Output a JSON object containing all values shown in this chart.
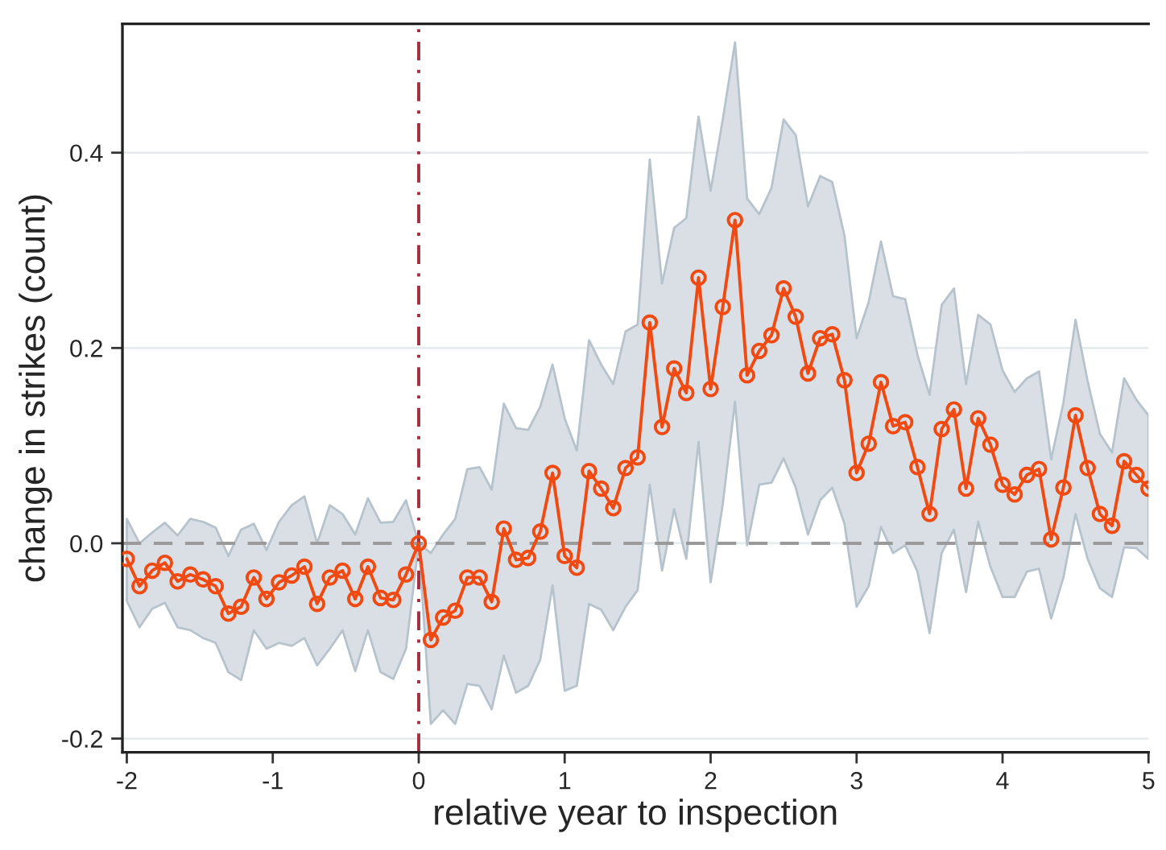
{
  "chart_data": {
    "type": "line",
    "xlabel": "relative year to inspection",
    "ylabel": "change in strikes (count)",
    "x": [
      -2.0,
      -1.913,
      -1.826,
      -1.739,
      -1.652,
      -1.565,
      -1.478,
      -1.391,
      -1.304,
      -1.217,
      -1.13,
      -1.043,
      -0.957,
      -0.87,
      -0.783,
      -0.696,
      -0.609,
      -0.522,
      -0.435,
      -0.348,
      -0.261,
      -0.174,
      -0.087,
      0.0,
      0.083,
      0.167,
      0.25,
      0.333,
      0.417,
      0.5,
      0.583,
      0.667,
      0.75,
      0.833,
      0.917,
      1.0,
      1.083,
      1.167,
      1.25,
      1.333,
      1.417,
      1.5,
      1.583,
      1.667,
      1.75,
      1.833,
      1.917,
      2.0,
      2.083,
      2.167,
      2.25,
      2.333,
      2.417,
      2.5,
      2.583,
      2.667,
      2.75,
      2.833,
      2.917,
      3.0,
      3.083,
      3.167,
      3.25,
      3.333,
      3.417,
      3.5,
      3.583,
      3.667,
      3.75,
      3.833,
      3.917,
      4.0,
      4.083,
      4.167,
      4.25,
      4.333,
      4.417,
      4.5,
      4.583,
      4.667,
      4.75,
      4.833,
      4.917,
      5.0
    ],
    "series": [
      {
        "color": "#f04a12",
        "marker": "circle",
        "line_style": "solid",
        "values": [
          -0.016,
          -0.044,
          -0.028,
          -0.02,
          -0.039,
          -0.032,
          -0.037,
          -0.044,
          -0.072,
          -0.065,
          -0.035,
          -0.057,
          -0.04,
          -0.033,
          -0.024,
          -0.062,
          -0.035,
          -0.028,
          -0.057,
          -0.024,
          -0.056,
          -0.058,
          -0.032,
          0.0,
          -0.099,
          -0.076,
          -0.069,
          -0.035,
          -0.035,
          -0.06,
          0.015,
          -0.017,
          -0.015,
          0.012,
          0.072,
          -0.013,
          -0.025,
          0.074,
          0.056,
          0.036,
          0.077,
          0.088,
          0.226,
          0.119,
          0.179,
          0.154,
          0.272,
          0.158,
          0.242,
          0.331,
          0.172,
          0.197,
          0.213,
          0.261,
          0.232,
          0.174,
          0.21,
          0.214,
          0.167,
          0.072,
          0.102,
          0.165,
          0.12,
          0.124,
          0.078,
          0.03,
          0.117,
          0.137,
          0.056,
          0.128,
          0.101,
          0.06,
          0.05,
          0.07,
          0.076,
          0.004,
          0.057,
          0.131,
          0.077,
          0.03,
          0.018,
          0.084,
          0.07,
          0.056
        ],
        "lower": [
          -0.059,
          -0.086,
          -0.067,
          -0.061,
          -0.086,
          -0.089,
          -0.097,
          -0.102,
          -0.132,
          -0.14,
          -0.089,
          -0.108,
          -0.102,
          -0.105,
          -0.097,
          -0.125,
          -0.108,
          -0.089,
          -0.131,
          -0.089,
          -0.132,
          -0.139,
          -0.108,
          0.0,
          -0.185,
          -0.171,
          -0.185,
          -0.144,
          -0.146,
          -0.17,
          -0.115,
          -0.153,
          -0.146,
          -0.119,
          -0.043,
          -0.151,
          -0.146,
          -0.062,
          -0.068,
          -0.089,
          -0.065,
          -0.048,
          0.06,
          -0.028,
          0.035,
          -0.016,
          0.104,
          -0.04,
          0.04,
          0.145,
          -0.002,
          0.06,
          0.062,
          0.087,
          0.057,
          0.009,
          0.044,
          0.057,
          0.02,
          -0.065,
          -0.044,
          0.017,
          -0.01,
          -0.002,
          -0.029,
          -0.092,
          -0.01,
          0.014,
          -0.05,
          0.022,
          -0.024,
          -0.055,
          -0.055,
          -0.029,
          -0.026,
          -0.077,
          -0.035,
          0.03,
          -0.016,
          -0.046,
          -0.055,
          -0.004,
          -0.005,
          -0.016
        ],
        "upper": [
          0.025,
          0.0,
          0.011,
          0.021,
          0.008,
          0.025,
          0.022,
          0.016,
          -0.013,
          0.014,
          0.02,
          -0.007,
          0.022,
          0.039,
          0.048,
          0.0,
          0.039,
          0.03,
          0.009,
          0.046,
          0.021,
          0.022,
          0.044,
          0.0,
          -0.01,
          0.009,
          0.025,
          0.076,
          0.078,
          0.055,
          0.143,
          0.118,
          0.116,
          0.14,
          0.183,
          0.128,
          0.095,
          0.208,
          0.183,
          0.163,
          0.217,
          0.224,
          0.393,
          0.266,
          0.323,
          0.333,
          0.437,
          0.361,
          0.434,
          0.513,
          0.353,
          0.337,
          0.364,
          0.434,
          0.418,
          0.345,
          0.376,
          0.37,
          0.315,
          0.21,
          0.247,
          0.309,
          0.253,
          0.25,
          0.193,
          0.152,
          0.244,
          0.261,
          0.163,
          0.234,
          0.224,
          0.177,
          0.155,
          0.169,
          0.176,
          0.086,
          0.144,
          0.229,
          0.166,
          0.112,
          0.093,
          0.169,
          0.147,
          0.131
        ]
      }
    ],
    "xlim": [
      -2.03,
      5.0
    ],
    "xticks": [
      -2,
      -1,
      0,
      1,
      2,
      3,
      4,
      5
    ],
    "ylim": [
      -0.214,
      0.532
    ],
    "yticks": [
      {
        "value": -0.2,
        "label": "-0.2"
      },
      {
        "value": 0.0,
        "label": "0.0"
      },
      {
        "value": 0.2,
        "label": "0.2"
      },
      {
        "value": 0.4,
        "label": "0.4"
      }
    ],
    "grid": "y",
    "ref_lines": [
      {
        "axis": "y",
        "value": 0,
        "color": "#9a9a9a",
        "line_style": "dashed"
      },
      {
        "axis": "x",
        "value": 0,
        "color": "#a03040",
        "line_style": "dashdot"
      }
    ]
  }
}
